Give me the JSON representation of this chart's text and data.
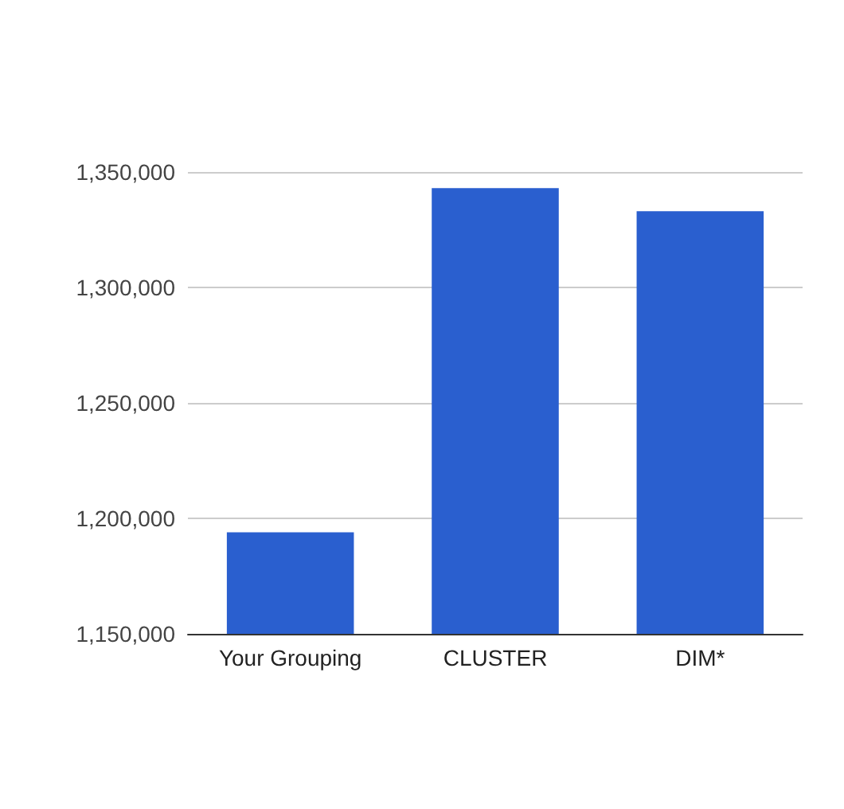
{
  "chart_data": {
    "type": "bar",
    "categories": [
      "Your Grouping",
      "CLUSTER",
      "DIM*"
    ],
    "values": [
      1194000,
      1343000,
      1333000
    ],
    "color": "#2a5fcf",
    "ylim": [
      1150000,
      1350000
    ],
    "yticks": [
      {
        "value": 1150000,
        "label": "1,150,000"
      },
      {
        "value": 1200000,
        "label": "1,200,000"
      },
      {
        "value": 1250000,
        "label": "1,250,000"
      },
      {
        "value": 1300000,
        "label": "1,300,000"
      },
      {
        "value": 1350000,
        "label": "1,350,000"
      }
    ],
    "grid": "y"
  }
}
